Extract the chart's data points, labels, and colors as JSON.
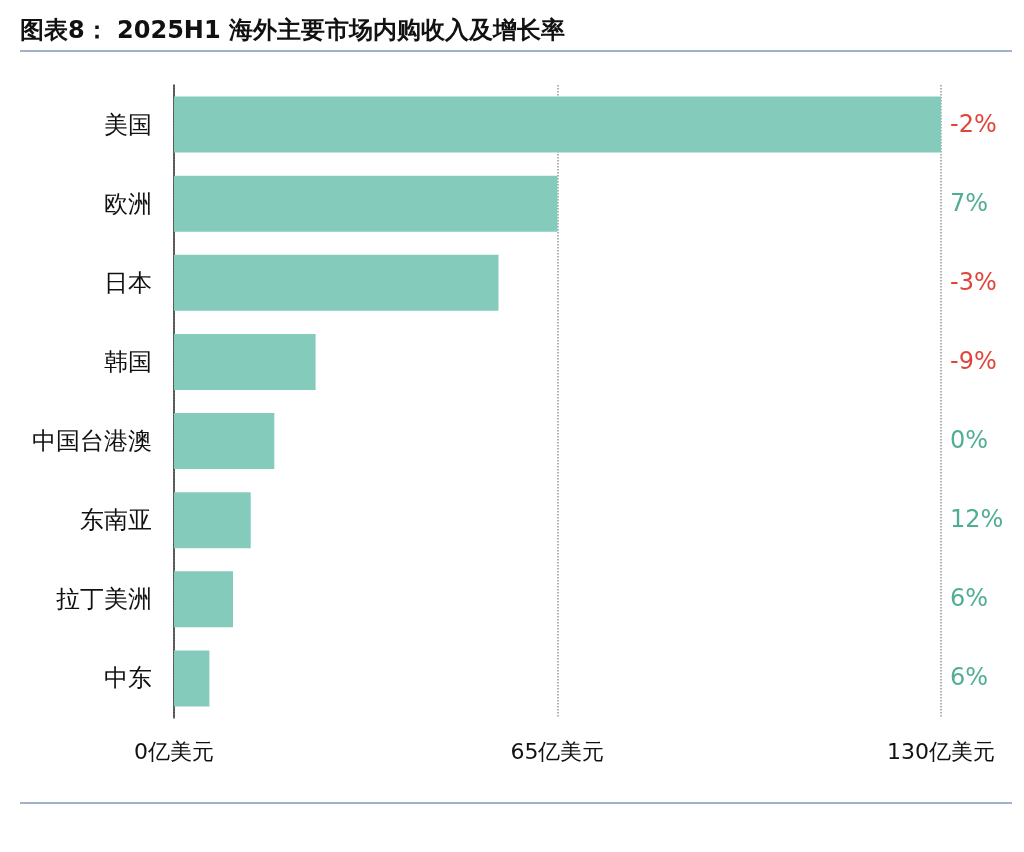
{
  "chart_data": {
    "type": "bar",
    "orientation": "horizontal",
    "title": "图表8： 2025H1 海外主要市场内购收入及增长率",
    "categories": [
      "美国",
      "欧洲",
      "日本",
      "韩国",
      "中国台港澳",
      "东南亚",
      "拉丁美洲",
      "中东"
    ],
    "values": [
      130,
      65,
      55,
      24,
      17,
      13,
      10,
      6
    ],
    "color": "#85cbbb",
    "xlim": [
      0,
      130
    ],
    "xticks": [
      {
        "value": 0,
        "label": "0亿美元"
      },
      {
        "value": 65,
        "label": "65亿美元"
      },
      {
        "value": 130,
        "label": "130亿美元"
      }
    ],
    "grid": "x",
    "annotations": [
      "-2%",
      "7%",
      "-3%",
      "-9%",
      "0%",
      "12%",
      "6%",
      "6%"
    ]
  }
}
